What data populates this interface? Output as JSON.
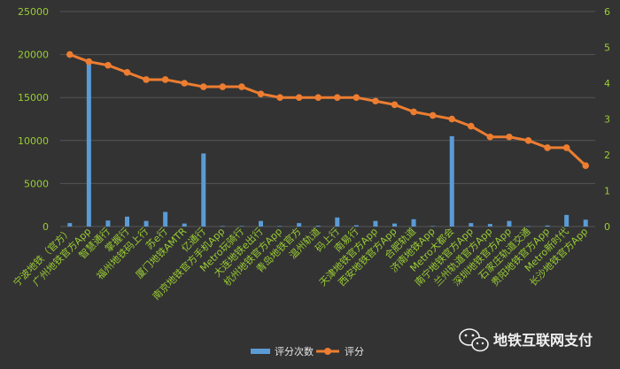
{
  "chart_data": {
    "type": "bar+line",
    "categories": [
      "宁波地铁（官方）",
      "广州地铁官方App",
      "智慧通行",
      "掌握行",
      "福州地铁码上行",
      "苏e行",
      "厦门地铁AMTR",
      "亿通行",
      "南京地铁官方手机App",
      "Metro玩骑行",
      "大连地铁e出行",
      "杭州地铁官方App",
      "青岛地铁官方",
      "温州轨道",
      "码上行",
      "南易行",
      "天津地铁官方App",
      "西安地铁官方App",
      "合肥轨道",
      "济南地铁App",
      "Metro大都会",
      "南宁地铁官方App",
      "兰州轨道官方App",
      "深圳地铁官方App",
      "石家庄轨道交通",
      "贵阳地铁官方App",
      "Metro新时代",
      "长沙地铁官方App"
    ],
    "series": [
      {
        "name": "评分次数",
        "type": "bar",
        "axis": "left",
        "color": "#5b9bd5",
        "values": [
          400,
          19500,
          700,
          1150,
          650,
          1700,
          350,
          8500,
          60,
          60,
          650,
          60,
          400,
          100,
          1050,
          150,
          650,
          350,
          850,
          60,
          10500,
          400,
          300,
          650,
          40,
          120,
          1350,
          800
        ]
      },
      {
        "name": "评分",
        "type": "line",
        "axis": "right",
        "color": "#ed7d31",
        "values": [
          4.8,
          4.6,
          4.5,
          4.3,
          4.1,
          4.1,
          4.0,
          3.9,
          3.9,
          3.9,
          3.7,
          3.6,
          3.6,
          3.6,
          3.6,
          3.6,
          3.5,
          3.4,
          3.2,
          3.1,
          3.0,
          2.8,
          2.5,
          2.5,
          2.4,
          2.2,
          2.2,
          1.7
        ]
      }
    ],
    "y_left": {
      "min": 0,
      "max": 25000,
      "ticks": [
        "0",
        "5000",
        "10000",
        "15000",
        "20000",
        "25000"
      ]
    },
    "y_right": {
      "min": 0,
      "max": 6,
      "ticks": [
        "0",
        "1",
        "2",
        "3",
        "4",
        "5",
        "6"
      ]
    },
    "grid": true,
    "legend_position": "bottom-center"
  },
  "legend": {
    "bar_label": "评分次数",
    "line_label": "评分"
  },
  "watermark": {
    "text": "地铁互联网支付",
    "icon": "wechat-icon"
  },
  "colors": {
    "background": "#333333",
    "grid": "#555555",
    "tick_text": "#9acd32",
    "bar": "#5b9bd5",
    "line": "#ed7d31"
  }
}
